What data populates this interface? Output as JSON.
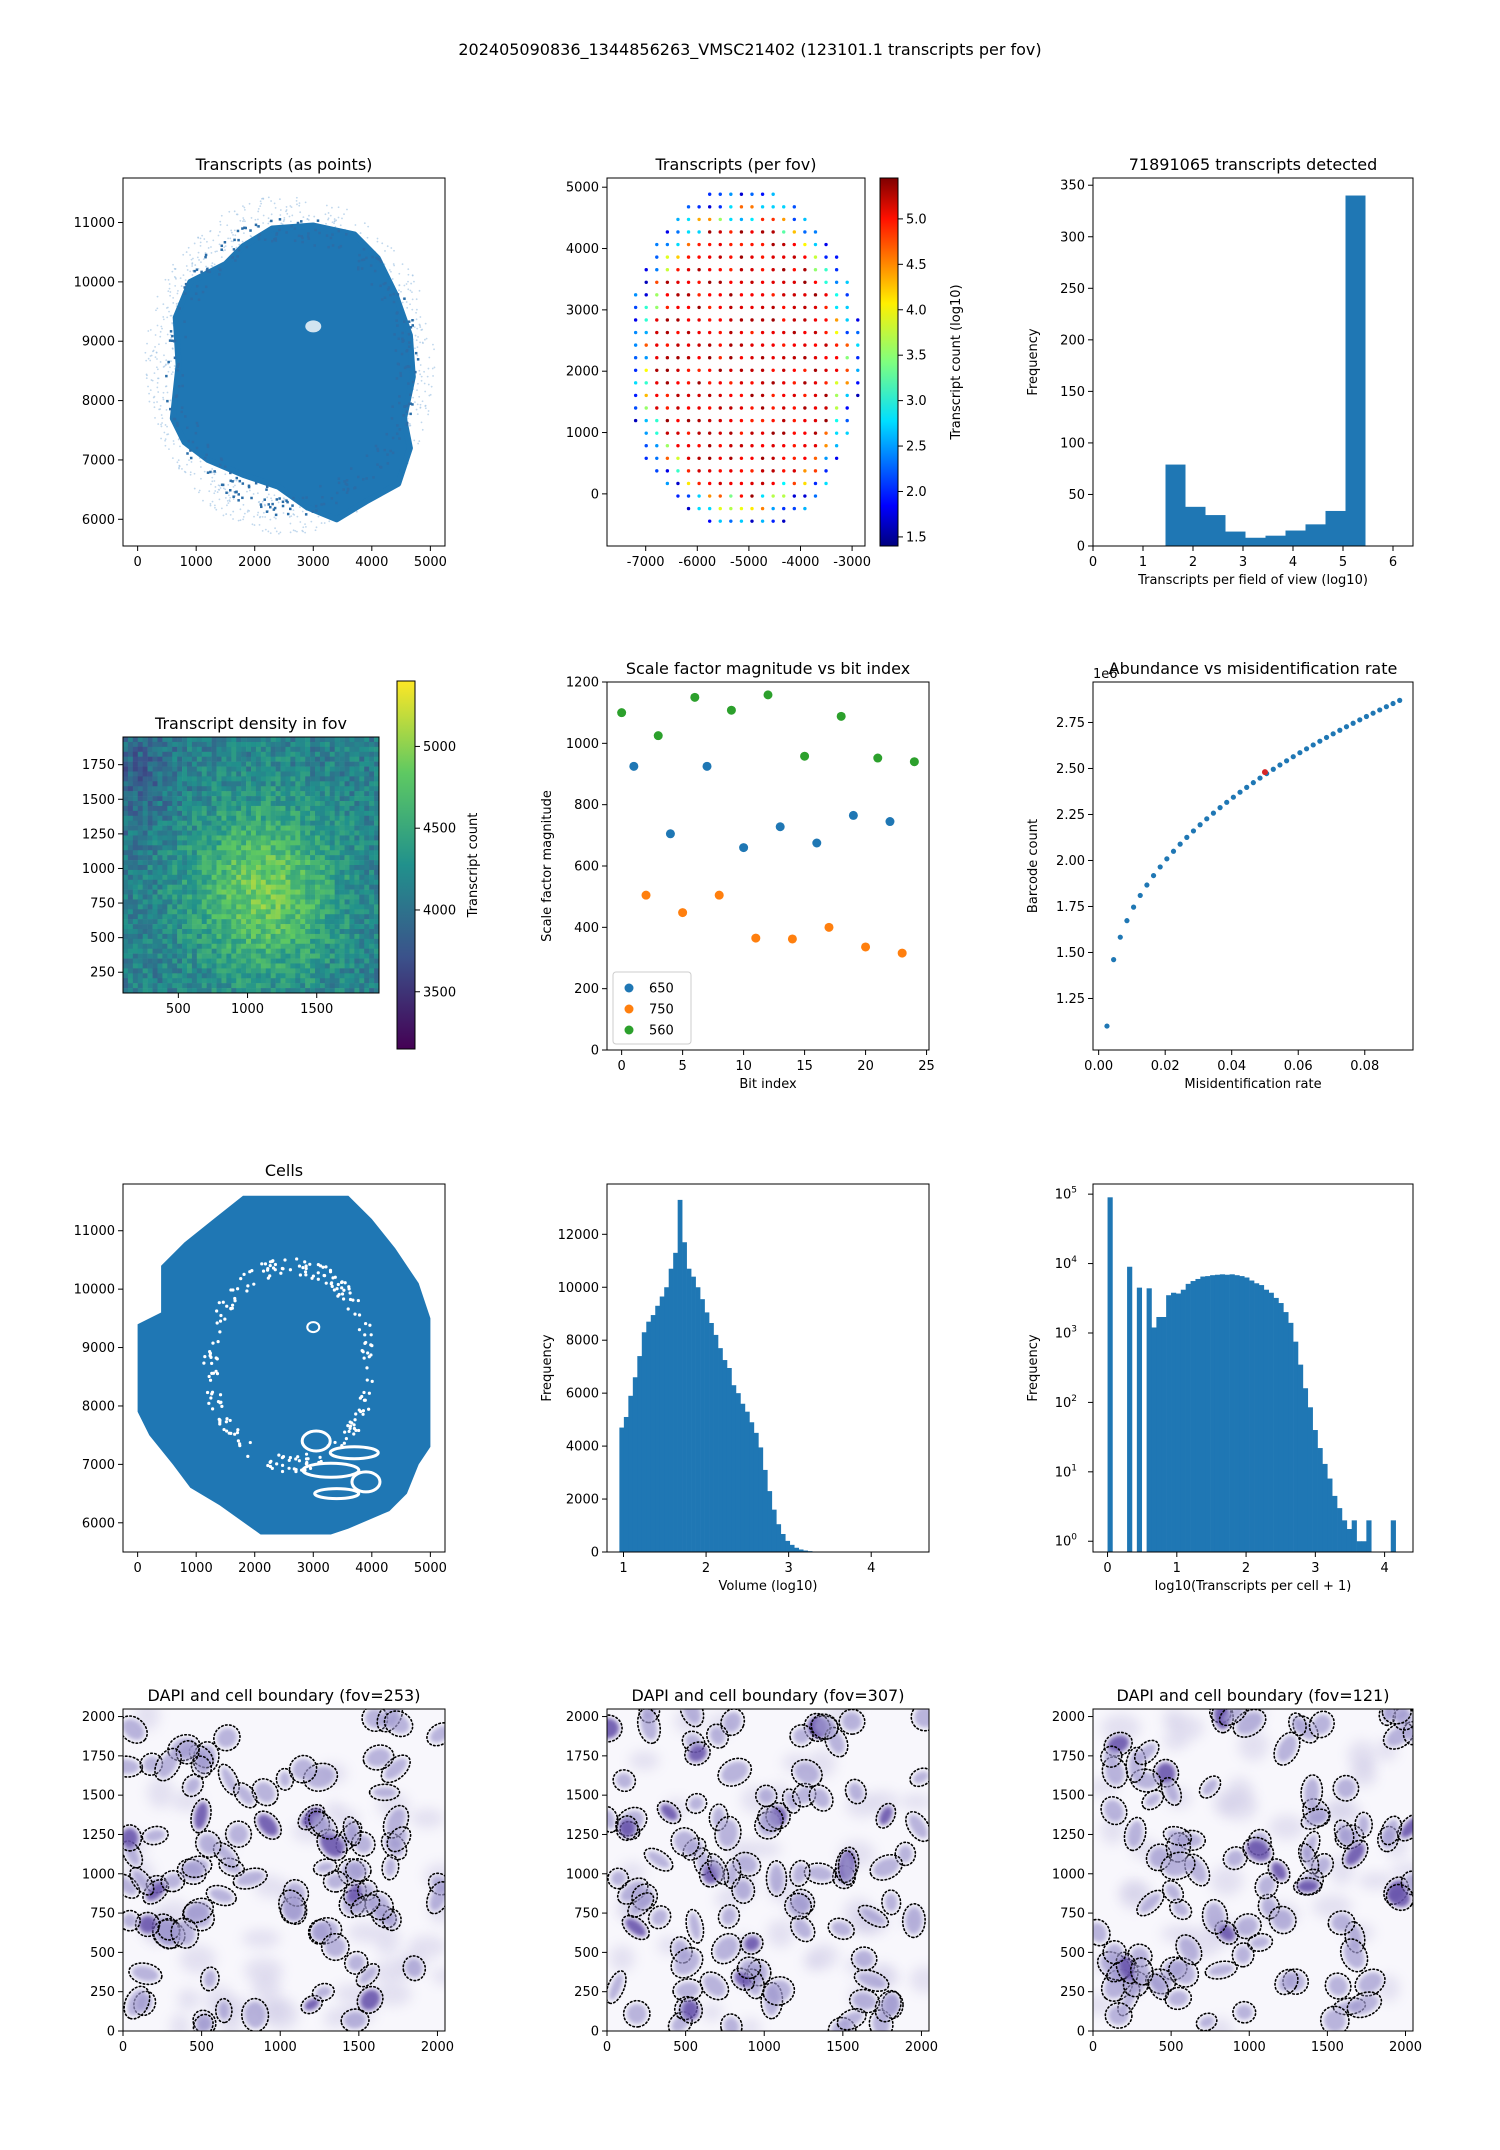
{
  "figure": {
    "suptitle": "202405090836_1344856263_VMSC21402 (123101.1 transcripts per fov)"
  },
  "chart_data": [
    {
      "id": "transcripts-points",
      "type": "scatter",
      "title": "Transcripts (as points)",
      "xlabel": "",
      "ylabel": "",
      "xlim": [
        -250,
        5250
      ],
      "ylim": [
        5550,
        11750
      ],
      "xticks": [
        0,
        1000,
        2000,
        3000,
        4000,
        5000
      ],
      "yticks": [
        6000,
        7000,
        8000,
        9000,
        10000,
        11000
      ],
      "shape": {
        "center": [
          2600,
          8600
        ],
        "radius_x": 2250,
        "radius_y": 2600
      },
      "color": "#1f77b4"
    },
    {
      "id": "transcripts-per-fov",
      "type": "scatter",
      "title": "Transcripts (per fov)",
      "xlabel": "",
      "ylabel": "",
      "xlim": [
        -7750,
        -2750
      ],
      "ylim": [
        -850,
        5150
      ],
      "xticks": [
        -7000,
        -6000,
        -5000,
        -4000,
        -3000
      ],
      "yticks": [
        0,
        1000,
        2000,
        3000,
        4000,
        5000
      ],
      "grid": {
        "center": [
          -5100,
          2200
        ],
        "radius_x": 2300,
        "radius_y": 2850,
        "step": 205
      },
      "colorbar": {
        "label": "Transcript count (log10)",
        "min": 1.4,
        "max": 5.45,
        "ticks": [
          1.5,
          2.0,
          2.5,
          3.0,
          3.5,
          4.0,
          4.5,
          5.0
        ],
        "cmap": "jet"
      }
    },
    {
      "id": "transcripts-histogram",
      "type": "bar",
      "title": "71891065 transcripts detected",
      "xlabel": "Transcripts per field of view (log10)",
      "ylabel": "Frequency",
      "xlim": [
        0,
        6.4
      ],
      "ylim": [
        0,
        357
      ],
      "xticks": [
        0,
        1,
        2,
        3,
        4,
        5,
        6
      ],
      "yticks": [
        0,
        50,
        100,
        150,
        200,
        250,
        300,
        350
      ],
      "bin_edges": [
        1.45,
        1.85,
        2.25,
        2.65,
        3.05,
        3.45,
        3.85,
        4.25,
        4.65,
        5.05,
        5.45
      ],
      "values": [
        79,
        38,
        30,
        14,
        8,
        10,
        15,
        21,
        34,
        340
      ]
    },
    {
      "id": "transcript-density",
      "type": "heatmap",
      "title": "Transcript density in fov",
      "xlabel": "",
      "ylabel": "",
      "xlim": [
        100,
        1950
      ],
      "ylim": [
        100,
        1950
      ],
      "xticks": [
        500,
        1000,
        1500
      ],
      "yticks": [
        250,
        500,
        750,
        1000,
        1250,
        1500,
        1750
      ],
      "colorbar": {
        "label": "Transcript count",
        "min": 3150,
        "max": 5400,
        "ticks": [
          3500,
          4000,
          4500,
          5000
        ],
        "cmap": "viridis"
      }
    },
    {
      "id": "scale-factor",
      "type": "scatter",
      "title": "Scale factor magnitude vs bit index",
      "xlabel": "Bit index",
      "ylabel": "Scale factor magnitude",
      "xlim": [
        -1.2,
        25.2
      ],
      "ylim": [
        0,
        1200
      ],
      "xticks": [
        0,
        5,
        10,
        15,
        20,
        25
      ],
      "yticks": [
        0,
        200,
        400,
        600,
        800,
        1000,
        1200
      ],
      "legend": "lower-left",
      "series": [
        {
          "name": "650",
          "color": "#1f77b4",
          "x": [
            1,
            4,
            7,
            10,
            13,
            16,
            19,
            22
          ],
          "y": [
            925,
            705,
            925,
            660,
            728,
            675,
            765,
            745
          ]
        },
        {
          "name": "750",
          "color": "#ff7f0e",
          "x": [
            2,
            5,
            8,
            11,
            14,
            17,
            20,
            23
          ],
          "y": [
            505,
            448,
            505,
            365,
            362,
            400,
            336,
            316
          ]
        },
        {
          "name": "560",
          "color": "#2ca02c",
          "x": [
            0,
            3,
            6,
            9,
            12,
            15,
            18,
            21,
            24
          ],
          "y": [
            1100,
            1025,
            1150,
            1108,
            1158,
            958,
            1088,
            952,
            940
          ]
        }
      ]
    },
    {
      "id": "abundance-misid",
      "type": "scatter",
      "title": "Abundance vs misidentification rate",
      "xlabel": "Misidentification rate",
      "ylabel": "Barcode count",
      "offset_label": "1e6",
      "xlim": [
        -0.0017,
        0.0945
      ],
      "ylim": [
        0.97,
        2.97
      ],
      "xticks": [
        0.0,
        0.02,
        0.04,
        0.06,
        0.08
      ],
      "xticklabels": [
        "0.00",
        "0.02",
        "0.04",
        "0.06",
        "0.08"
      ],
      "yticks": [
        1.25,
        1.5,
        1.75,
        2.0,
        2.25,
        2.5,
        2.75
      ],
      "yticklabels": [
        "1.25",
        "1.50",
        "1.75",
        "2.00",
        "2.25",
        "2.50",
        "2.75"
      ],
      "series": [
        {
          "color": "#1f77b4",
          "x_range": [
            0.0025,
            0.0905
          ],
          "n_points": 45
        }
      ],
      "highlight": {
        "x": 0.05,
        "y": 2.48,
        "color": "#d62728"
      }
    },
    {
      "id": "cells",
      "type": "scatter",
      "title": "Cells",
      "xlabel": "",
      "ylabel": "",
      "xlim": [
        -250,
        5250
      ],
      "ylim": [
        5500,
        11800
      ],
      "xticks": [
        0,
        1000,
        2000,
        3000,
        4000,
        5000
      ],
      "yticks": [
        6000,
        7000,
        8000,
        9000,
        10000,
        11000
      ],
      "color": "#1f77b4"
    },
    {
      "id": "volume-histogram",
      "type": "bar",
      "title": "",
      "xlabel": "Volume (log10)",
      "ylabel": "Frequency",
      "xlim": [
        0.8,
        4.7
      ],
      "ylim": [
        0,
        13900
      ],
      "xticks": [
        1,
        2,
        3,
        4
      ],
      "yticks": [
        0,
        2000,
        4000,
        6000,
        8000,
        10000,
        12000
      ],
      "bin_start": 0.95,
      "bin_width": 0.0543,
      "values": [
        4700,
        5100,
        5900,
        6600,
        7400,
        8300,
        8700,
        8950,
        9300,
        9650,
        10000,
        10700,
        11300,
        13300,
        11700,
        10700,
        10400,
        10000,
        9550,
        9050,
        8650,
        8200,
        7700,
        7250,
        6950,
        6300,
        6000,
        5600,
        5300,
        4900,
        4500,
        3950,
        3100,
        2300,
        1600,
        1050,
        680,
        420,
        270,
        160,
        95,
        55,
        32,
        18,
        10,
        5,
        3,
        2,
        1,
        0,
        0,
        0,
        0,
        0,
        0,
        0,
        0,
        0,
        0,
        0,
        0,
        0,
        1,
        0,
        0
      ]
    },
    {
      "id": "transcripts-per-cell",
      "type": "bar",
      "title": "",
      "xlabel": "log10(Transcripts per cell + 1)",
      "ylabel": "Frequency",
      "yscale": "log",
      "xlim": [
        -0.21,
        4.41
      ],
      "ylim": [
        0.7,
        140000
      ],
      "xticks": [
        0,
        1,
        2,
        3,
        4
      ],
      "yticks": [
        1,
        10,
        100,
        1000,
        10000,
        100000
      ],
      "yticklabels": [
        "10^0",
        "10^1",
        "10^2",
        "10^3",
        "10^4",
        "10^5"
      ],
      "bin_start": 0.0,
      "bin_width": 0.0705,
      "values": [
        90000,
        0,
        0,
        0,
        9000,
        0,
        4500,
        0,
        4400,
        1200,
        1700,
        1700,
        3500,
        3800,
        3700,
        4200,
        5100,
        5600,
        6000,
        6500,
        6600,
        6800,
        6900,
        7000,
        6900,
        7000,
        6800,
        6600,
        6300,
        5700,
        5200,
        4900,
        4200,
        3800,
        3200,
        2700,
        2000,
        1400,
        750,
        350,
        160,
        85,
        40,
        22,
        13,
        8,
        4.5,
        3,
        2,
        1.5,
        2,
        1,
        1,
        2,
        0,
        0,
        0,
        0,
        2
      ]
    },
    {
      "id": "dapi-253",
      "type": "scatter",
      "title": "DAPI and cell boundary (fov=253)",
      "xlabel": "",
      "ylabel": "",
      "xlim": [
        0,
        2048
      ],
      "ylim": [
        0,
        2048
      ],
      "xticks": [
        0,
        500,
        1000,
        1500,
        2000
      ],
      "yticks": [
        0,
        250,
        500,
        750,
        1000,
        1250,
        1500,
        1750,
        2000
      ],
      "seed": 253
    },
    {
      "id": "dapi-307",
      "type": "scatter",
      "title": "DAPI and cell boundary (fov=307)",
      "xlabel": "",
      "ylabel": "",
      "xlim": [
        0,
        2048
      ],
      "ylim": [
        0,
        2048
      ],
      "xticks": [
        0,
        500,
        1000,
        1500,
        2000
      ],
      "yticks": [
        0,
        250,
        500,
        750,
        1000,
        1250,
        1500,
        1750,
        2000
      ],
      "seed": 307
    },
    {
      "id": "dapi-121",
      "type": "scatter",
      "title": "DAPI and cell boundary (fov=121)",
      "xlabel": "",
      "ylabel": "",
      "xlim": [
        0,
        2048
      ],
      "ylim": [
        0,
        2048
      ],
      "xticks": [
        0,
        500,
        1000,
        1500,
        2000
      ],
      "yticks": [
        0,
        250,
        500,
        750,
        1000,
        1250,
        1500,
        1750,
        2000
      ],
      "seed": 121
    }
  ]
}
